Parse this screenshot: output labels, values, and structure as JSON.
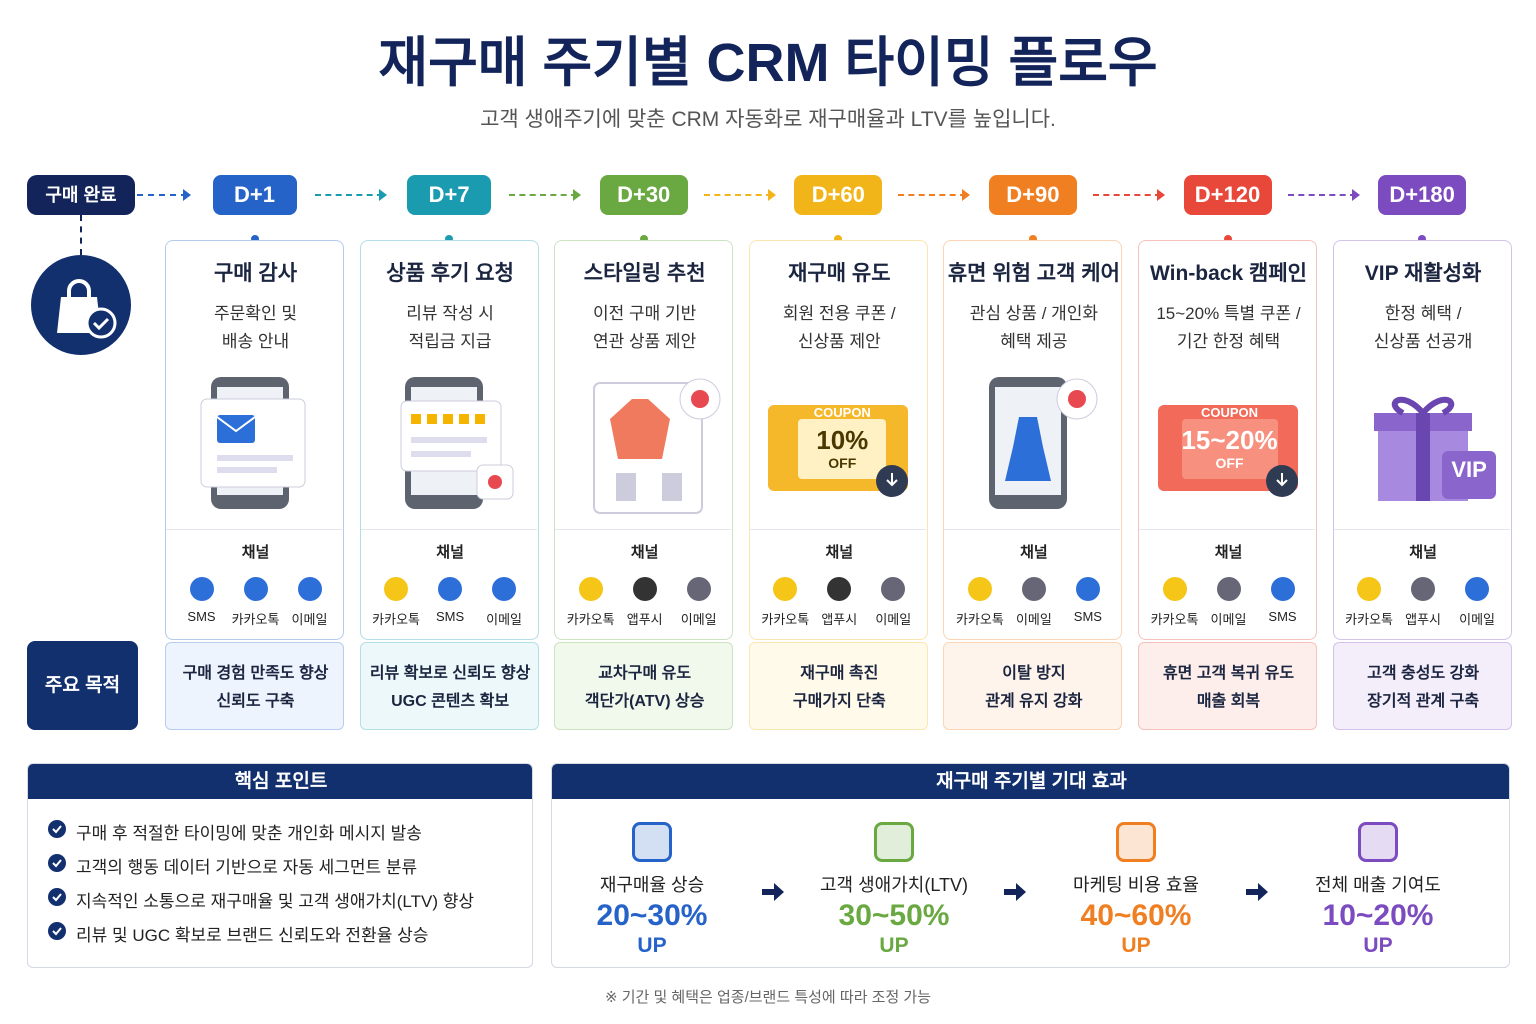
{
  "header": {
    "title": "재구매 주기별 CRM 타이밍 플로우",
    "subtitle": "고객 생애주기에 맞춘 CRM 자동화로 재구매율과 LTV를 높입니다."
  },
  "start": {
    "label": "구매 완료"
  },
  "channel_label": "채널",
  "goal_label": "주요 목적",
  "stages": [
    {
      "day": "D+1",
      "title": "구매 감사",
      "desc": [
        "주문확인 및",
        "배송 안내"
      ],
      "channels": [
        "SMS",
        "카카오톡",
        "이메일"
      ],
      "goal": [
        "구매 경험 만족도 향상",
        "신뢰도 구축"
      ]
    },
    {
      "day": "D+7",
      "title": "상품 후기 요청",
      "desc": [
        "리뷰 작성 시",
        "적립금 지급"
      ],
      "channels": [
        "카카오톡",
        "SMS",
        "이메일"
      ],
      "goal": [
        "리뷰 확보로 신뢰도 향상",
        "UGC 콘텐츠 확보"
      ]
    },
    {
      "day": "D+30",
      "title": "스타일링 추천",
      "desc": [
        "이전 구매 기반",
        "연관 상품 제안"
      ],
      "channels": [
        "카카오톡",
        "앱푸시",
        "이메일"
      ],
      "goal": [
        "교차구매 유도",
        "객단가(ATV) 상승"
      ]
    },
    {
      "day": "D+60",
      "title": "재구매 유도",
      "desc": [
        "회원 전용 쿠폰 /",
        "신상품 제안"
      ],
      "coupon": [
        "COUPON",
        "10%",
        "OFF"
      ],
      "channels": [
        "카카오톡",
        "앱푸시",
        "이메일"
      ],
      "goal": [
        "재구매 촉진",
        "구매가지 단축"
      ]
    },
    {
      "day": "D+90",
      "title": "휴면 위험 고객 케어",
      "desc": [
        "관심 상품 / 개인화",
        "혜택 제공"
      ],
      "channels": [
        "카카오톡",
        "이메일",
        "SMS"
      ],
      "goal": [
        "이탈 방지",
        "관계 유지 강화"
      ]
    },
    {
      "day": "D+120",
      "title": "Win-back 캠페인",
      "desc": [
        "15~20% 특별 쿠폰 /",
        "기간 한정 혜택"
      ],
      "coupon": [
        "COUPON",
        "15~20%",
        "OFF"
      ],
      "channels": [
        "카카오톡",
        "이메일",
        "SMS"
      ],
      "goal": [
        "휴면 고객 복귀 유도",
        "매출 회복"
      ]
    },
    {
      "day": "D+180",
      "title": "VIP 재활성화",
      "desc": [
        "한정 혜택 /",
        "신상품 선공개"
      ],
      "badge": "VIP",
      "channels": [
        "카카오톡",
        "앱푸시",
        "이메일"
      ],
      "goal": [
        "고객 충성도 강화",
        "장기적 관계 구축"
      ]
    }
  ],
  "key_points": {
    "title": "핵심 포인트",
    "items": [
      "구매 후 적절한 타이밍에 맞춘 개인화 메시지 발송",
      "고객의 행동 데이터 기반으로 자동 세그먼트 분류",
      "지속적인 소통으로 재구매율 및 고객 생애가치(LTV) 향상",
      "리뷰 및 UGC 확보로 브랜드 신뢰도와 전환율 상승"
    ]
  },
  "effects": {
    "title": "재구매 주기별 기대 효과",
    "items": [
      {
        "label": "재구매율 상승",
        "value": "20~30%",
        "up": "UP"
      },
      {
        "label": "고객 생애가치(LTV)",
        "value": "30~50%",
        "up": "UP"
      },
      {
        "label": "마케팅 비용 효율",
        "value": "40~60%",
        "up": "UP"
      },
      {
        "label": "전체 매출 기여도",
        "value": "10~20%",
        "up": "UP"
      }
    ]
  },
  "footnote": "※ 기간 및 혜택은 업종/브랜드 특성에 따라 조정 가능"
}
